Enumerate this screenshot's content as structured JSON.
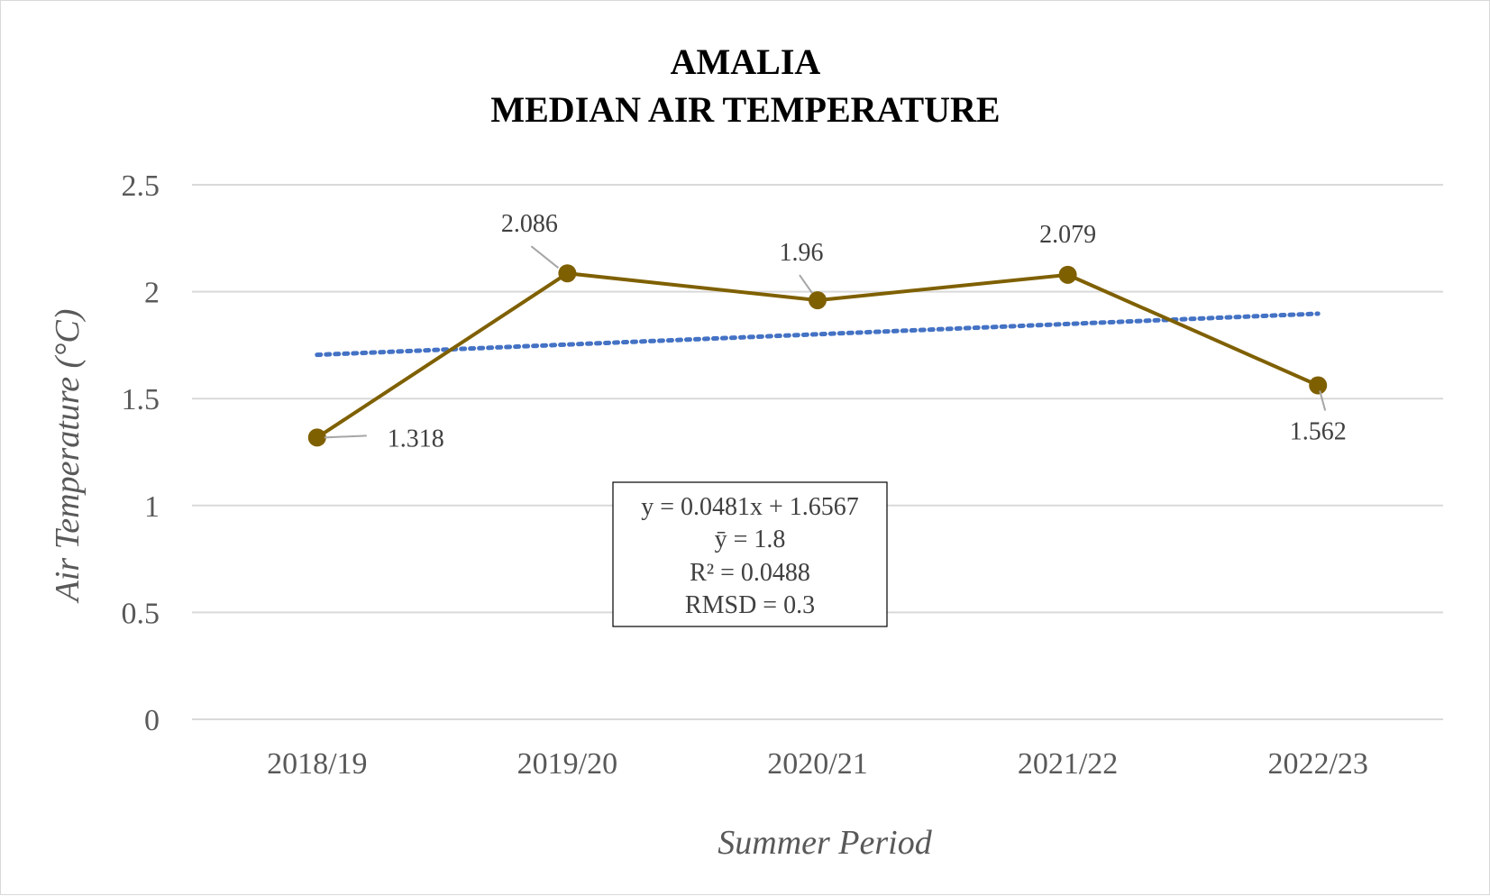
{
  "chart_data": {
    "type": "line",
    "title_lines": [
      "AMALIA",
      "MEDIAN AIR TEMPERATURE"
    ],
    "xlabel": "Summer Period",
    "ylabel": "Air Temperature (°C)",
    "categories": [
      "2018/19",
      "2019/20",
      "2020/21",
      "2021/22",
      "2022/23"
    ],
    "ylim": [
      0,
      2.5
    ],
    "yticks": [
      0,
      0.5,
      1,
      1.5,
      2,
      2.5
    ],
    "ytick_labels": [
      "0",
      "0.5",
      "1",
      "1.5",
      "2",
      "2.5"
    ],
    "grid": true,
    "series": [
      {
        "values": [
          1.318,
          2.086,
          1.96,
          2.079,
          1.562
        ],
        "data_labels": [
          "1.318",
          "2.086",
          "1.96",
          "2.079",
          "1.562"
        ],
        "color": "#7f6000"
      }
    ],
    "trendline": {
      "type": "linear",
      "slope": 0.0481,
      "intercept": 1.6567,
      "color": "#4472c4",
      "style": "dotted"
    },
    "annotation_box": [
      "y = 0.0481x + 1.6567",
      "ȳ = 1.8",
      "R² = 0.0488",
      "RMSD = 0.3"
    ]
  }
}
